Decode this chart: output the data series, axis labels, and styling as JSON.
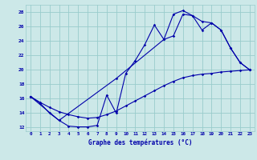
{
  "xlabel": "Graphe des températures (°C)",
  "background_color": "#cce8e8",
  "grid_color": "#99cccc",
  "line_color": "#0000aa",
  "ylim": [
    11.5,
    29
  ],
  "xlim": [
    -0.5,
    23.5
  ],
  "yticks": [
    12,
    14,
    16,
    18,
    20,
    22,
    24,
    26,
    28
  ],
  "xticks": [
    0,
    1,
    2,
    3,
    4,
    5,
    6,
    7,
    8,
    9,
    10,
    11,
    12,
    13,
    14,
    15,
    16,
    17,
    18,
    19,
    20,
    21,
    22,
    23
  ],
  "line1_x": [
    0,
    1,
    2,
    3,
    4,
    5,
    6,
    7,
    8,
    9,
    10,
    11,
    12,
    13,
    14,
    15,
    16,
    17,
    18,
    19,
    20,
    21,
    22,
    23
  ],
  "line1_y": [
    16.3,
    15.4,
    14.0,
    13.0,
    12.2,
    12.1,
    12.1,
    12.3,
    16.5,
    14.0,
    19.5,
    21.3,
    23.5,
    26.2,
    24.2,
    27.7,
    28.2,
    27.5,
    26.7,
    26.5,
    25.5,
    23.0,
    21.0,
    20.0
  ],
  "line2_x": [
    0,
    1,
    2,
    3,
    4,
    5,
    6,
    7,
    8,
    9,
    10,
    11,
    12,
    13,
    14,
    15,
    16,
    17,
    18,
    19,
    20,
    21,
    22,
    23
  ],
  "line2_y": [
    16.3,
    15.5,
    14.8,
    14.2,
    13.8,
    13.5,
    13.3,
    13.4,
    13.8,
    14.3,
    15.0,
    15.7,
    16.4,
    17.1,
    17.8,
    18.4,
    18.9,
    19.2,
    19.4,
    19.5,
    19.7,
    19.8,
    19.9,
    20.0
  ],
  "line3_x": [
    0,
    3,
    9,
    14,
    15,
    16,
    17,
    18,
    19,
    20,
    21,
    22,
    23
  ],
  "line3_y": [
    16.3,
    13.0,
    18.8,
    24.2,
    24.7,
    27.7,
    27.5,
    25.5,
    26.5,
    25.5,
    23.0,
    21.0,
    20.0
  ]
}
